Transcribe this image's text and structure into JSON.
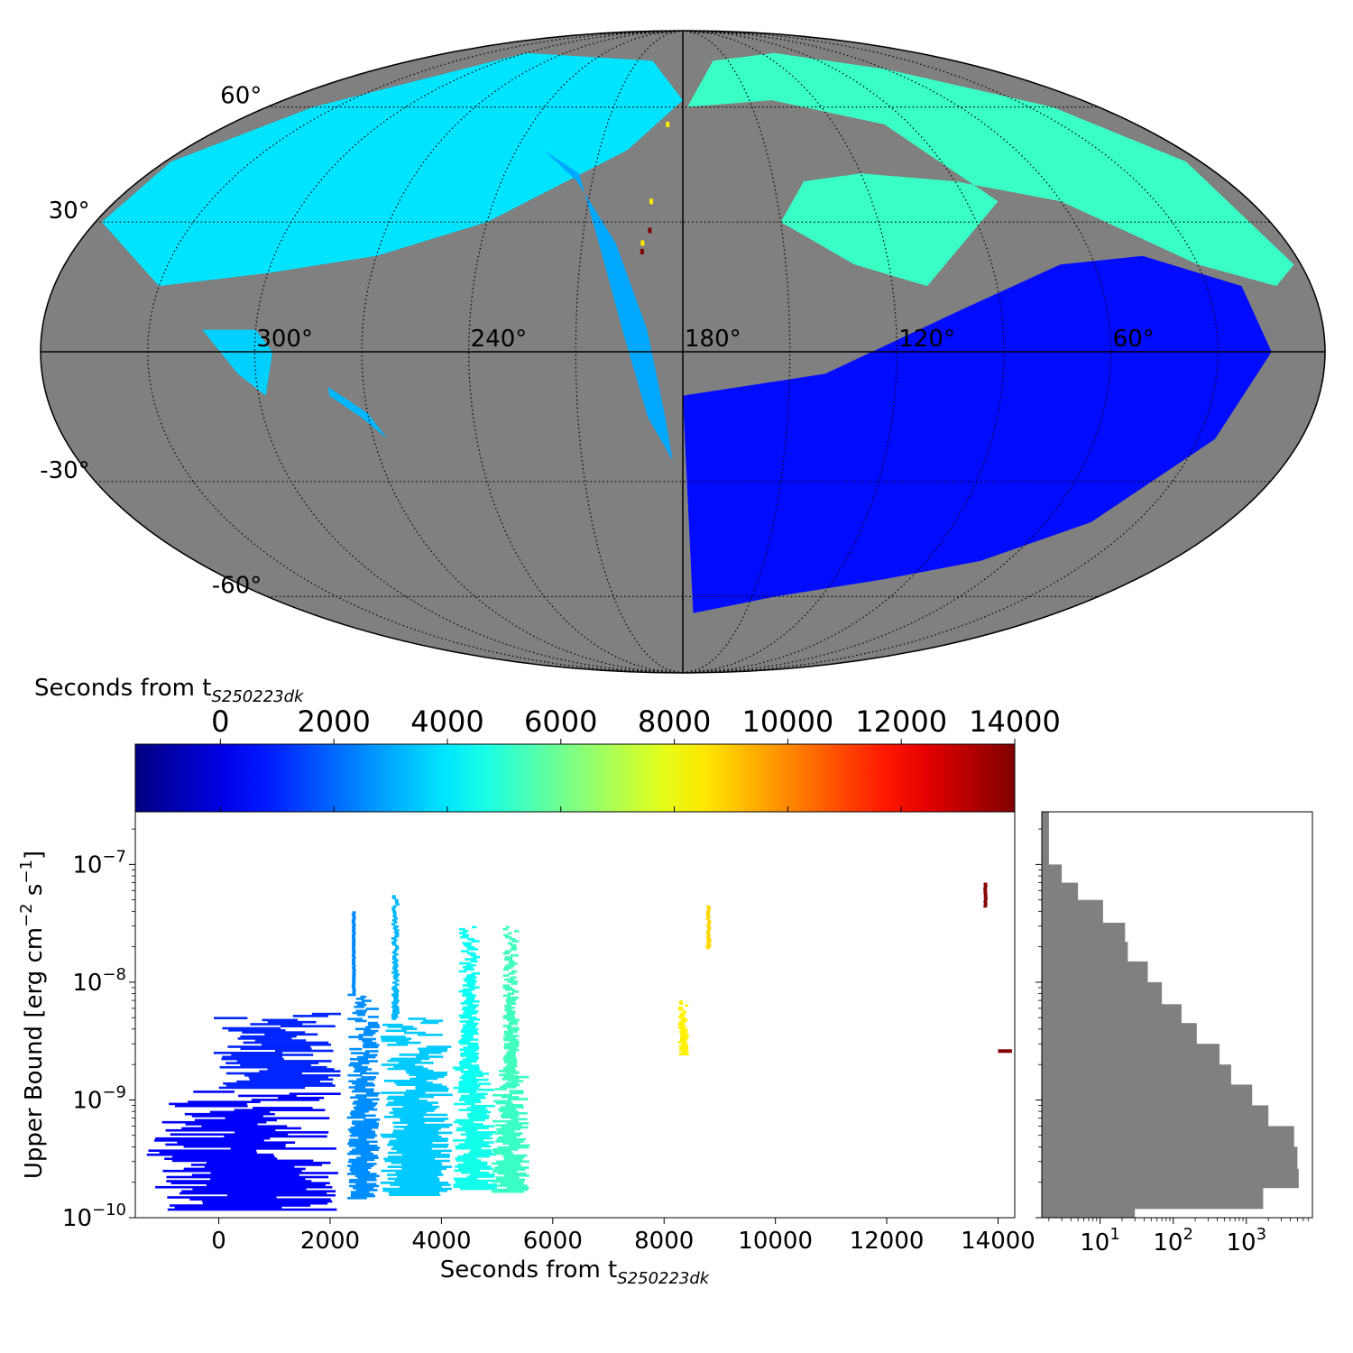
{
  "chart_data": [
    {
      "type": "heatmap",
      "title": "",
      "projection": "mollweide",
      "lon_tick_labels": [
        "300°",
        "240°",
        "180°",
        "120°",
        "60°"
      ],
      "lat_tick_labels": [
        "60°",
        "30°",
        "-30°",
        "-60°"
      ],
      "lon_ticks": [
        300,
        240,
        180,
        120,
        60
      ],
      "lat_ticks": [
        60,
        30,
        -30,
        -60
      ],
      "grid": true,
      "background_color": "#808080",
      "regions": [
        {
          "t": 3900,
          "poly": [
            [
              330,
              15
            ],
            [
              300,
              18
            ],
            [
              270,
              22
            ],
            [
              240,
              30
            ],
            [
              200,
              48
            ],
            [
              180,
              62
            ],
            [
              200,
              75
            ],
            [
              300,
              78
            ],
            [
              340,
              60
            ],
            [
              358,
              45
            ],
            [
              358,
              30
            ]
          ]
        },
        {
          "t": 3000,
          "poly": [
            [
              230,
              48
            ],
            [
              215,
              40
            ],
            [
              200,
              25
            ],
            [
              190,
              5
            ],
            [
              185,
              -15
            ],
            [
              183,
              -25
            ],
            [
              190,
              -15
            ],
            [
              197,
              5
            ],
            [
              205,
              25
            ],
            [
              215,
              42
            ]
          ]
        },
        {
          "t": 5200,
          "poly": [
            [
              178,
              60
            ],
            [
              160,
              75
            ],
            [
              110,
              78
            ],
            [
              60,
              72
            ],
            [
              20,
              60
            ],
            [
              5,
              45
            ],
            [
              2,
              20
            ],
            [
              10,
              15
            ],
            [
              30,
              20
            ],
            [
              60,
              35
            ],
            [
              90,
              40
            ],
            [
              120,
              42
            ],
            [
              140,
              40
            ],
            [
              150,
              30
            ],
            [
              130,
              20
            ],
            [
              110,
              15
            ],
            [
              80,
              35
            ],
            [
              100,
              55
            ],
            [
              140,
              62
            ]
          ]
        },
        {
          "t": 600,
          "poly": [
            [
              180,
              -10
            ],
            [
              140,
              -5
            ],
            [
              100,
              10
            ],
            [
              70,
              20
            ],
            [
              45,
              22
            ],
            [
              20,
              15
            ],
            [
              15,
              0
            ],
            [
              25,
              -20
            ],
            [
              45,
              -40
            ],
            [
              70,
              -50
            ],
            [
              100,
              -55
            ],
            [
              140,
              -60
            ],
            [
              175,
              -65
            ],
            [
              178,
              -40
            ]
          ]
        },
        {
          "t": 3600,
          "poly": [
            [
              315,
              5
            ],
            [
              305,
              -5
            ],
            [
              298,
              -10
            ],
            [
              295,
              0
            ],
            [
              300,
              5
            ]
          ]
        },
        {
          "t": 3200,
          "poly": [
            [
              280,
              -8
            ],
            [
              270,
              -14
            ],
            [
              266,
              -20
            ],
            [
              272,
              -15
            ],
            [
              280,
              -10
            ]
          ]
        }
      ],
      "markers": [
        {
          "lon": 190,
          "lat": 35,
          "t": 8500
        },
        {
          "lon": 192,
          "lat": 25,
          "t": 8500
        },
        {
          "lon": 186,
          "lat": 55,
          "t": 8500
        },
        {
          "lon": 190,
          "lat": 28,
          "t": 14000
        },
        {
          "lon": 192,
          "lat": 23,
          "t": 14000
        }
      ]
    },
    {
      "type": "colorbar",
      "label": "Seconds from t",
      "label_sub": "S250223dk",
      "colormap": "jet",
      "range": [
        -1500,
        14000
      ],
      "ticks": [
        0,
        2000,
        4000,
        6000,
        8000,
        10000,
        12000,
        14000
      ],
      "tick_labels": [
        "0",
        "2000",
        "4000",
        "6000",
        "8000",
        "10000",
        "12000",
        "14000"
      ]
    },
    {
      "type": "scatter",
      "xlabel": "Seconds from t",
      "xlabel_sub": "S250223dk",
      "ylabel_parts": [
        "Upper Bound [erg cm",
        "−2",
        " s",
        "−1",
        "]"
      ],
      "yscale": "log",
      "xlim": [
        -1500,
        14300
      ],
      "ylim": [
        1e-10,
        2.8e-07
      ],
      "x_ticks": [
        0,
        2000,
        4000,
        6000,
        8000,
        10000,
        12000,
        14000
      ],
      "x_tick_labels": [
        "0",
        "2000",
        "4000",
        "6000",
        "8000",
        "10000",
        "12000",
        "14000"
      ],
      "y_ticks": [
        1e-10,
        1e-09,
        1e-08,
        1e-07
      ],
      "y_tick_labels": [
        [
          "10",
          "−10"
        ],
        [
          "10",
          "−9"
        ],
        [
          "10",
          "−8"
        ],
        [
          "10",
          "−7"
        ]
      ],
      "clusters": [
        {
          "x": [
            -1300,
            2200
          ],
          "y": [
            1.2e-10,
            1.2e-09
          ],
          "t": 400
        },
        {
          "x": [
            -100,
            2200
          ],
          "y": [
            1.3e-09,
            5.5e-09
          ],
          "t": 1000
        },
        {
          "x": [
            2300,
            2900
          ],
          "y": [
            1.5e-10,
            8e-09
          ],
          "t": 2600
        },
        {
          "x": [
            2400,
            2450
          ],
          "y": [
            8e-09,
            4e-08
          ],
          "t": 2500
        },
        {
          "x": [
            2900,
            4200
          ],
          "y": [
            1.6e-10,
            5e-09
          ],
          "t": 3500
        },
        {
          "x": [
            3100,
            3250
          ],
          "y": [
            5e-09,
            5.5e-08
          ],
          "t": 3200
        },
        {
          "x": [
            4200,
            5000
          ],
          "y": [
            1.8e-10,
            2e-09
          ],
          "t": 4600
        },
        {
          "x": [
            4300,
            4700
          ],
          "y": [
            1.2e-09,
            3e-08
          ],
          "t": 4500
        },
        {
          "x": [
            4900,
            5600
          ],
          "y": [
            1.7e-10,
            1.8e-09
          ],
          "t": 5200
        },
        {
          "x": [
            5100,
            5400
          ],
          "y": [
            1.5e-09,
            3e-08
          ],
          "t": 5300
        },
        {
          "x": [
            8250,
            8450
          ],
          "y": [
            2.5e-09,
            7e-09
          ],
          "t": 8400
        },
        {
          "x": [
            8750,
            8850
          ],
          "y": [
            2e-08,
            4.5e-08
          ],
          "t": 8800
        },
        {
          "x": [
            13750,
            13800
          ],
          "y": [
            4.5e-08,
            7e-08
          ],
          "t": 13900
        },
        {
          "x": [
            14000,
            14250
          ],
          "y": [
            2.6e-09,
            2.6e-09
          ],
          "t": 14000
        }
      ]
    },
    {
      "type": "bar",
      "orientation": "horizontal",
      "xscale": "log",
      "yscale": "log",
      "x_tick_labels": [
        [
          "10",
          "1"
        ],
        [
          "10",
          "2"
        ],
        [
          "10",
          "3"
        ]
      ],
      "x_ticks": [
        10,
        100,
        1000
      ],
      "xlim": [
        1.6,
        8000
      ],
      "color": "#808080",
      "bins": [
        {
          "y0": 1.5e-07,
          "y1": 2.8e-07,
          "count": 2
        },
        {
          "y0": 1e-07,
          "y1": 1.5e-07,
          "count": 2
        },
        {
          "y0": 7e-08,
          "y1": 1e-07,
          "count": 3
        },
        {
          "y0": 5e-08,
          "y1": 7e-08,
          "count": 5
        },
        {
          "y0": 3.2e-08,
          "y1": 5e-08,
          "count": 11
        },
        {
          "y0": 2.2e-08,
          "y1": 3.2e-08,
          "count": 22
        },
        {
          "y0": 1.5e-08,
          "y1": 2.2e-08,
          "count": 24
        },
        {
          "y0": 1e-08,
          "y1": 1.5e-08,
          "count": 45
        },
        {
          "y0": 6.5e-09,
          "y1": 1e-08,
          "count": 70
        },
        {
          "y0": 4.5e-09,
          "y1": 6.5e-09,
          "count": 130
        },
        {
          "y0": 3e-09,
          "y1": 4.5e-09,
          "count": 210
        },
        {
          "y0": 2e-09,
          "y1": 3e-09,
          "count": 430
        },
        {
          "y0": 1.35e-09,
          "y1": 2e-09,
          "count": 620
        },
        {
          "y0": 9e-10,
          "y1": 1.35e-09,
          "count": 1200
        },
        {
          "y0": 6e-10,
          "y1": 9e-10,
          "count": 2000
        },
        {
          "y0": 4e-10,
          "y1": 6e-10,
          "count": 4500
        },
        {
          "y0": 2.6e-10,
          "y1": 4e-10,
          "count": 5000
        },
        {
          "y0": 1.8e-10,
          "y1": 2.6e-10,
          "count": 5200
        },
        {
          "y0": 1.2e-10,
          "y1": 1.8e-10,
          "count": 1700
        },
        {
          "y0": 1e-10,
          "y1": 1.2e-10,
          "count": 30
        }
      ]
    }
  ]
}
